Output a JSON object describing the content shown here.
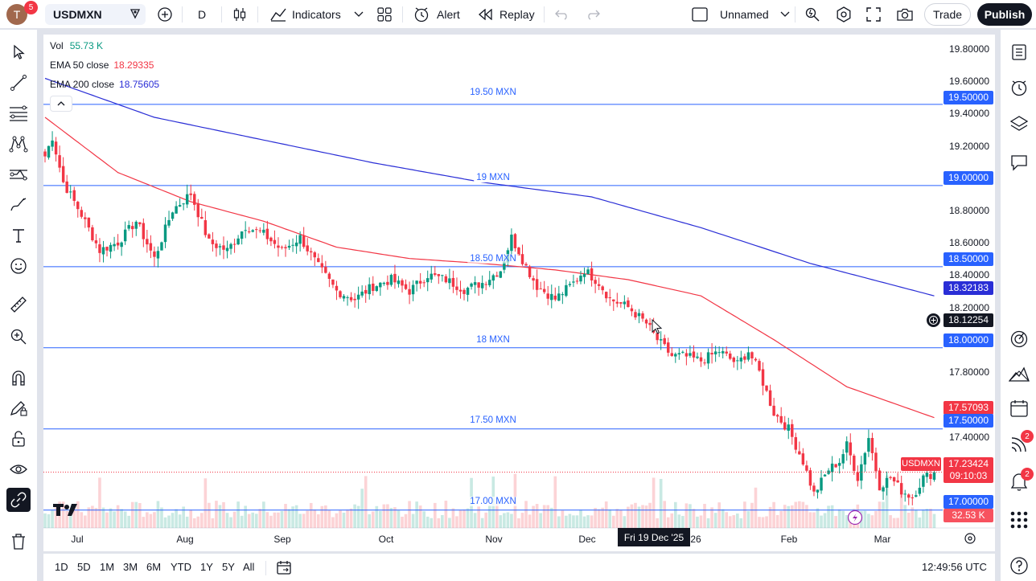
{
  "topbar": {
    "avatar_letter": "T",
    "avatar_badge": "5",
    "symbol": "USDMXN",
    "interval": "D",
    "indicators_label": "Indicators",
    "alert_label": "Alert",
    "replay_label": "Replay",
    "layout_name": "Unnamed",
    "trade_label": "Trade",
    "publish_label": "Publish"
  },
  "legend": {
    "vol_label": "Vol",
    "vol_value": "55.73 K",
    "ema50_label": "EMA 50 close",
    "ema50_value": "18.29335",
    "ema200_label": "EMA 200 close",
    "ema200_value": "18.75605"
  },
  "colors": {
    "up": "#089981",
    "down": "#f23645",
    "ema50": "#f23645",
    "ema200": "#2a2ed6",
    "hline": "#2962ff"
  },
  "price_axis": {
    "ticks": [
      "19.80000",
      "19.60000",
      "19.40000",
      "19.20000",
      "18.80000",
      "18.60000",
      "18.40000",
      "18.20000",
      "17.80000",
      "17.40000"
    ],
    "tags": {
      "h1950": "19.50000",
      "h1900": "19.00000",
      "h1850": "18.50000",
      "ema200": "18.32183",
      "cross": "18.12254",
      "h1800": "18.00000",
      "ema50": "17.57093",
      "h1750": "17.50000",
      "last": "17.23424",
      "countdown": "09:10:03",
      "h1700": "17.00000",
      "vol": "32.53 K"
    },
    "symbol_tag": "USDMXN"
  },
  "hlines": {
    "h1950": "19.50 MXN",
    "h1900": "19 MXN",
    "h1850": "18.50 MXN",
    "h1800": "18 MXN",
    "h1750": "17.50 MXN",
    "h1700": "17.00 MXN"
  },
  "time_axis": {
    "labels": [
      "Jul",
      "Aug",
      "Sep",
      "Oct",
      "Nov",
      "Dec",
      "26",
      "Feb",
      "Mar"
    ],
    "crosshair_date": "Fri 19 Dec '25"
  },
  "bottombar": {
    "ranges": [
      "1D",
      "5D",
      "1M",
      "3M",
      "6M",
      "YTD",
      "1Y",
      "5Y",
      "All"
    ],
    "clock": "12:49:56 UTC"
  },
  "right_badges": {
    "news": "2",
    "alerts": "2"
  },
  "icons": {
    "left": [
      "cursor-icon",
      "trendline-icon",
      "fib-icon",
      "pattern-icon",
      "forecast-icon",
      "brush-icon",
      "text-icon",
      "emoji-icon",
      "ruler-icon",
      "zoom-icon",
      "magnet-icon",
      "lock-draw-icon",
      "lock-icon",
      "eye-icon",
      "link-icon",
      "trash-icon"
    ],
    "right": [
      "watchlist-icon",
      "alert-clock-icon",
      "layers-icon",
      "chat-icon",
      "target-icon",
      "ideas-icon",
      "calendar-icon",
      "broadcast-icon",
      "bell-icon",
      "apps-icon",
      "help-icon"
    ]
  },
  "chart_data": {
    "type": "candlestick",
    "pair": "USDMXN",
    "ylim": [
      16.89,
      19.93
    ],
    "hlines": [
      19.5,
      19.0,
      18.5,
      18.0,
      17.5,
      17.0
    ],
    "last_price": 17.23424,
    "ema50_last": 17.57093,
    "ema200_last": 18.32183,
    "anchors": [
      [
        0,
        19.18
      ],
      [
        2,
        19.3
      ],
      [
        5,
        19.02
      ],
      [
        10,
        18.82
      ],
      [
        15,
        18.6
      ],
      [
        20,
        18.65
      ],
      [
        25,
        18.78
      ],
      [
        30,
        18.55
      ],
      [
        35,
        18.85
      ],
      [
        40,
        18.95
      ],
      [
        45,
        18.65
      ],
      [
        50,
        18.6
      ],
      [
        55,
        18.75
      ],
      [
        60,
        18.7
      ],
      [
        65,
        18.6
      ],
      [
        70,
        18.68
      ],
      [
        75,
        18.5
      ],
      [
        80,
        18.35
      ],
      [
        85,
        18.3
      ],
      [
        90,
        18.38
      ],
      [
        95,
        18.42
      ],
      [
        100,
        18.35
      ],
      [
        105,
        18.45
      ],
      [
        110,
        18.42
      ],
      [
        115,
        18.36
      ],
      [
        120,
        18.4
      ],
      [
        125,
        18.48
      ],
      [
        128,
        18.68
      ],
      [
        132,
        18.5
      ],
      [
        135,
        18.38
      ],
      [
        140,
        18.3
      ],
      [
        145,
        18.4
      ],
      [
        148,
        18.48
      ],
      [
        152,
        18.4
      ],
      [
        155,
        18.3
      ],
      [
        160,
        18.25
      ],
      [
        165,
        18.15
      ],
      [
        168,
        18.05
      ],
      [
        172,
        17.95
      ],
      [
        175,
        17.95
      ],
      [
        180,
        17.92
      ],
      [
        185,
        17.98
      ],
      [
        190,
        17.9
      ],
      [
        193,
        17.98
      ],
      [
        196,
        17.85
      ],
      [
        200,
        17.6
      ],
      [
        204,
        17.5
      ],
      [
        208,
        17.3
      ],
      [
        211,
        17.1
      ],
      [
        215,
        17.25
      ],
      [
        218,
        17.3
      ],
      [
        220,
        17.4
      ],
      [
        223,
        17.2
      ],
      [
        226,
        17.45
      ],
      [
        229,
        17.15
      ],
      [
        232,
        17.2
      ],
      [
        235,
        17.12
      ],
      [
        238,
        17.08
      ],
      [
        241,
        17.2
      ],
      [
        244,
        17.23
      ]
    ],
    "ema50_path": [
      [
        0,
        19.42
      ],
      [
        20,
        19.08
      ],
      [
        40,
        18.9
      ],
      [
        60,
        18.78
      ],
      [
        80,
        18.62
      ],
      [
        100,
        18.55
      ],
      [
        120,
        18.52
      ],
      [
        140,
        18.48
      ],
      [
        160,
        18.42
      ],
      [
        180,
        18.32
      ],
      [
        200,
        18.05
      ],
      [
        220,
        17.76
      ],
      [
        244,
        17.57
      ]
    ],
    "ema200_path": [
      [
        0,
        19.66
      ],
      [
        30,
        19.42
      ],
      [
        60,
        19.28
      ],
      [
        90,
        19.14
      ],
      [
        120,
        19.02
      ],
      [
        150,
        18.93
      ],
      [
        180,
        18.74
      ],
      [
        210,
        18.52
      ],
      [
        244,
        18.32
      ]
    ]
  }
}
